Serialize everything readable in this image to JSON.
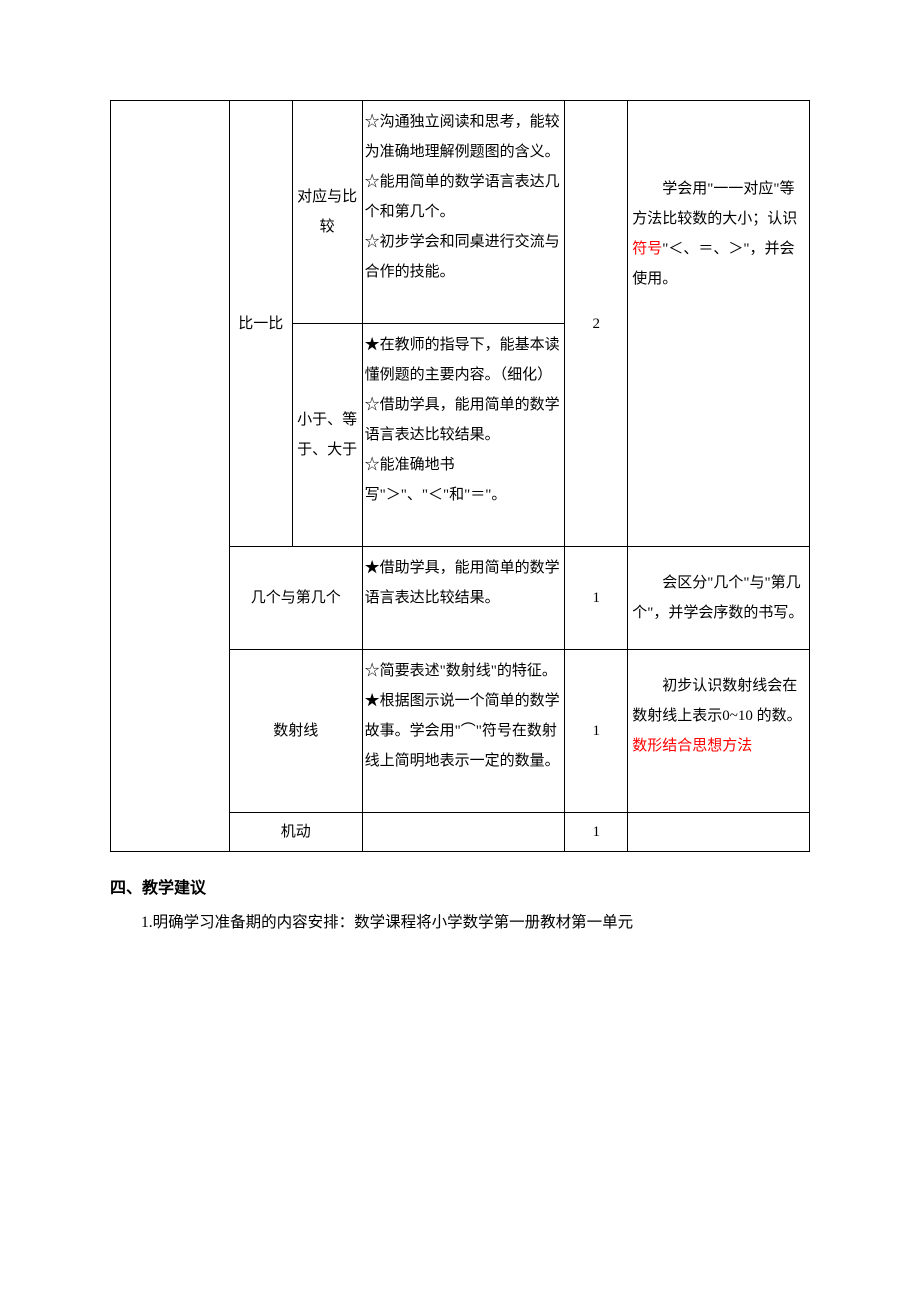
{
  "colors": {
    "text": "#000000",
    "highlight": "#ff0000",
    "border": "#000000",
    "background": "#ffffff"
  },
  "typography": {
    "body_fontsize_pt": 12,
    "heading_fontsize_pt": 12,
    "line_height": 2.0,
    "body_font": "SimSun",
    "heading_font": "SimHei"
  },
  "table": {
    "column_widths_pct": [
      17,
      9,
      10,
      29,
      9,
      26
    ],
    "rows": {
      "r1": {
        "unit": "比一比",
        "sub": "对应与比较",
        "goals": [
          "☆沟通独立阅读和思考，能较为准确地理解例题图的含义。",
          "☆能用简单的数学语言表达几个和第几个。",
          "☆初步学会和同桌进行交流与合作的技能。"
        ],
        "hours": "2",
        "notes_plain": "　　学会用\"一一对应\"等方法比较数的大小；认识",
        "notes_red": "符号",
        "notes_after": "\"＜、＝、＞\"，并会使用。"
      },
      "r2": {
        "sub": "小于、等于、大于",
        "goals": [
          "★在教师的指导下，能基本读懂例题的主要内容。（细化）",
          "☆借助学具，能用简单的数学语言表达比较结果。",
          "☆能准确地书写\"＞\"、\"＜\"和\"＝\"。"
        ]
      },
      "r3": {
        "unit": "几个与第几个",
        "goals": [
          "★借助学具，能用简单的数学语言表达比较结果。"
        ],
        "hours": "1",
        "notes": "　　会区分\"几个\"与\"第几个\"，并学会序数的书写。"
      },
      "r4": {
        "unit": "数射线",
        "goals": [
          "☆简要表述\"数射线\"的特征。",
          "★根据图示说一个简单的数学故事。学会用\"⌒\"符号在数射线上简明地表示一定的数量。"
        ],
        "hours": "1",
        "notes_plain": "　　初步认识数射线会在数射线上表示0~10 的数。",
        "notes_red": "数形结合思想方法"
      },
      "r5": {
        "unit": "机动",
        "goals": "",
        "hours": "1",
        "notes": ""
      }
    }
  },
  "after": {
    "heading": "四、教学建议",
    "para1": "1.明确学习准备期的内容安排：数学课程将小学数学第一册教材第一单元"
  }
}
